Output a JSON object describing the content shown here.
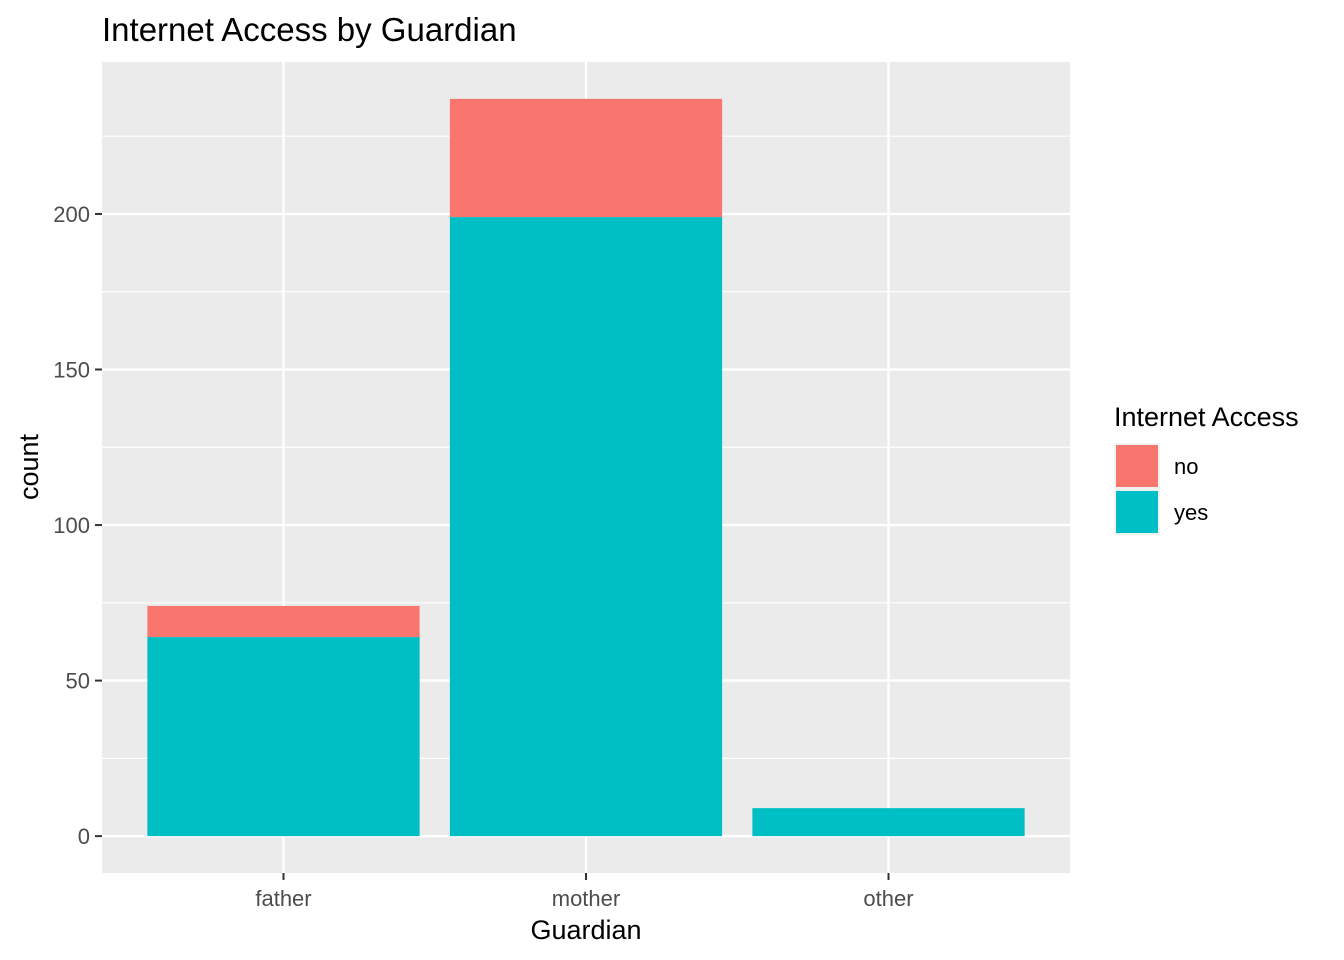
{
  "chart_data": {
    "type": "bar",
    "stacked": true,
    "title": "Internet Access by Guardian",
    "xlabel": "Guardian",
    "ylabel": "count",
    "categories": [
      "father",
      "mother",
      "other"
    ],
    "series": [
      {
        "name": "no",
        "values": [
          10,
          38,
          0
        ],
        "color": "#F8766D"
      },
      {
        "name": "yes",
        "values": [
          64,
          199,
          9
        ],
        "color": "#00BFC4"
      }
    ],
    "yticks": [
      0,
      50,
      100,
      150,
      200
    ],
    "ylim": [
      -11.85,
      248.85
    ],
    "grid": true,
    "legend": {
      "title": "Internet Access",
      "placement": "right",
      "entries": [
        "no",
        "yes"
      ]
    },
    "panel_color": "#EBEBEB",
    "grid_color": "#FFFFFF"
  }
}
